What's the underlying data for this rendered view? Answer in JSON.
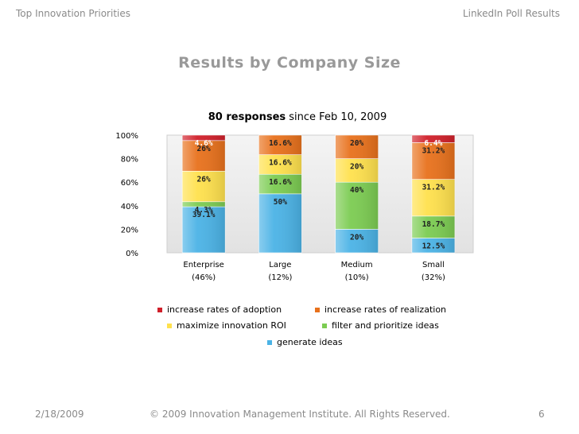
{
  "header": {
    "left": "Top Innovation Priorities",
    "right": "LinkedIn Poll Results"
  },
  "slide_title": "Results by Company Size",
  "footer": {
    "date": "2/18/2009",
    "copyright": "© 2009 Innovation Management Institute. All Rights Reserved.",
    "page": "6"
  },
  "colors": {
    "generate_ideas": "#4bb3e6",
    "filter_prioritize": "#7ccc52",
    "maximize_roi": "#ffe14d",
    "realization": "#e8711c",
    "adoption": "#d0202a"
  },
  "chart_data": {
    "type": "bar",
    "stacked": true,
    "percent": true,
    "title_bold": "80 responses",
    "title_rest": " since Feb 10, 2009",
    "ylim": [
      0,
      100
    ],
    "yticks": [
      "0%",
      "20%",
      "40%",
      "60%",
      "80%",
      "100%"
    ],
    "categories": [
      {
        "name": "Enterprise",
        "share": "(46%)"
      },
      {
        "name": "Large",
        "share": "(12%)"
      },
      {
        "name": "Medium",
        "share": "(10%)"
      },
      {
        "name": "Small",
        "share": "(32%)"
      }
    ],
    "series": [
      {
        "name": "generate ideas",
        "color": "#4bb3e6",
        "values": [
          39.1,
          50,
          20,
          12.5
        ],
        "labels": [
          "39.1%",
          "50%",
          "20%",
          "12.5%"
        ]
      },
      {
        "name": "filter and prioritize ideas",
        "color": "#7ccc52",
        "values": [
          4.3,
          16.6,
          40,
          18.7
        ],
        "labels": [
          "4.3%",
          "16.6%",
          "40%",
          "18.7%"
        ]
      },
      {
        "name": "maximize innovation ROI",
        "color": "#ffe14d",
        "values": [
          26,
          16.6,
          20,
          31.2
        ],
        "labels": [
          "26%",
          "16.6%",
          "20%",
          "31.2%"
        ]
      },
      {
        "name": "increase rates of realization",
        "color": "#e8711c",
        "values": [
          26,
          16.6,
          20,
          31.2
        ],
        "labels": [
          "26%",
          "16.6%",
          "20%",
          "31.2%"
        ]
      },
      {
        "name": "increase rates of adoption",
        "color": "#d0202a",
        "values": [
          4.6,
          0,
          0,
          6.4
        ],
        "labels": [
          "4.6%",
          "",
          "",
          "6.4%"
        ]
      }
    ],
    "legend": [
      "increase rates of adoption",
      "increase rates of realization",
      "maximize innovation ROI",
      "filter and prioritize ideas",
      "generate ideas"
    ],
    "legend_placement": "bottom",
    "grid": false
  }
}
